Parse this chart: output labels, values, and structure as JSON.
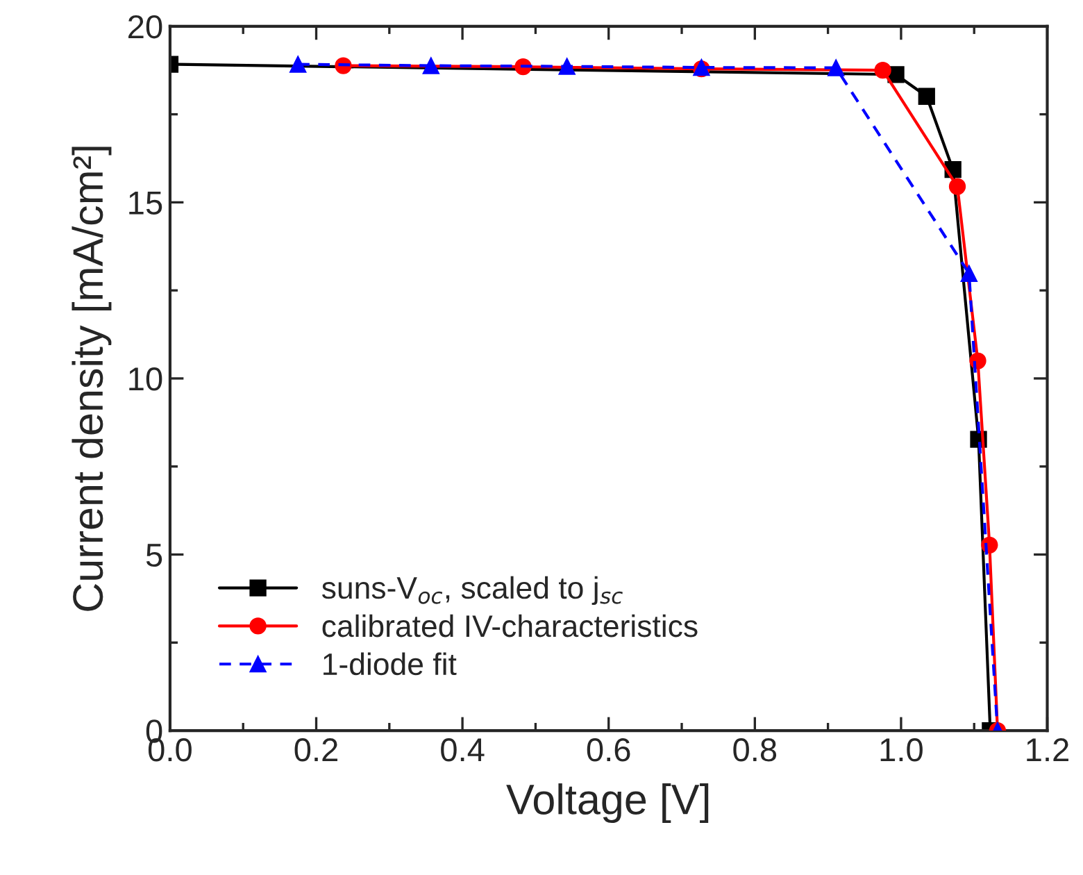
{
  "chart_data": {
    "type": "line",
    "xlabel": "Voltage [V]",
    "ylabel": "Current density [mA/cm²]",
    "xlim": [
      0,
      1.2
    ],
    "xticks": [
      {
        "value": 0,
        "label": "0.0"
      },
      0.2,
      0.4,
      0.6,
      0.8,
      {
        "value": 1,
        "label": "1.0"
      },
      1.2
    ],
    "ylim": [
      0,
      20
    ],
    "yticks": [
      0,
      5,
      10,
      15,
      20
    ],
    "grid": false,
    "legend": "bottom left",
    "series": [
      {
        "name": "suns-V$_{oc}$, scaled to j$_{sc}$",
        "color": "#000000",
        "marker": "square",
        "line_style": "solid",
        "x": [
          0,
          0.993,
          1.035,
          1.071,
          1.106,
          1.122
        ],
        "values": [
          18.92,
          18.63,
          18.01,
          15.93,
          8.27,
          0
        ]
      },
      {
        "name": "calibrated IV-characteristics",
        "color": "#ff0000",
        "marker": "circle",
        "line_style": "solid",
        "x": [
          0.237,
          0.483,
          0.727,
          0.975,
          1.077,
          1.105,
          1.121,
          1.132
        ],
        "values": [
          18.88,
          18.85,
          18.79,
          18.75,
          15.45,
          10.5,
          5.27,
          0
        ]
      },
      {
        "name": "1-diode fit",
        "color": "#0000ff",
        "marker": "triangle",
        "line_style": "dashed",
        "x": [
          0.175,
          0.357,
          0.543,
          0.727,
          0.911,
          1.093,
          1.132
        ],
        "values": [
          18.92,
          18.88,
          18.86,
          18.83,
          18.82,
          12.98,
          0
        ]
      }
    ]
  }
}
